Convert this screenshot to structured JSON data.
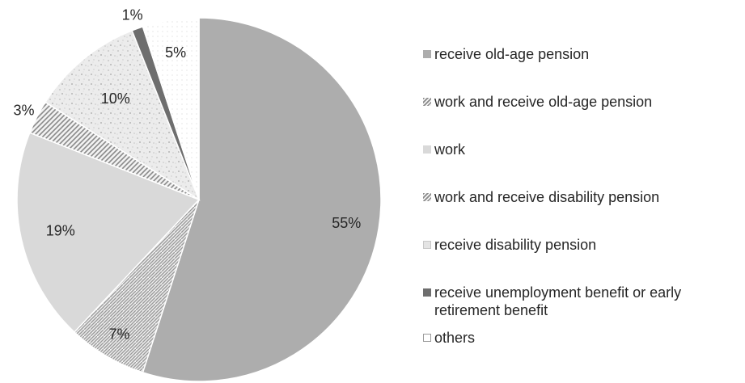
{
  "chart_data": {
    "type": "pie",
    "title": "",
    "categories": [
      "receive old-age pension",
      "work and receive old-age pension",
      "work",
      "work and receive disability pension",
      "receive disability pension",
      "receive unemployment benefit or early retirement benefit",
      "others"
    ],
    "values": [
      55,
      7,
      19,
      3,
      10,
      1,
      5
    ],
    "labels": [
      "55%",
      "7%",
      "19%",
      "3%",
      "10%",
      "1%",
      "5%"
    ],
    "legend_position": "right",
    "start_angle_deg": 0,
    "direction": "clockwise",
    "colors": [
      "#adadad",
      "#d0d0d0",
      "#d9d9d9",
      "#bfbfbf",
      "#e9e9e9",
      "#6e6e6e",
      "#ffffff"
    ],
    "fills": [
      "solid",
      "diagonal-weave",
      "solid",
      "diagonal-stripes",
      "speckle",
      "solid",
      "dots"
    ]
  }
}
